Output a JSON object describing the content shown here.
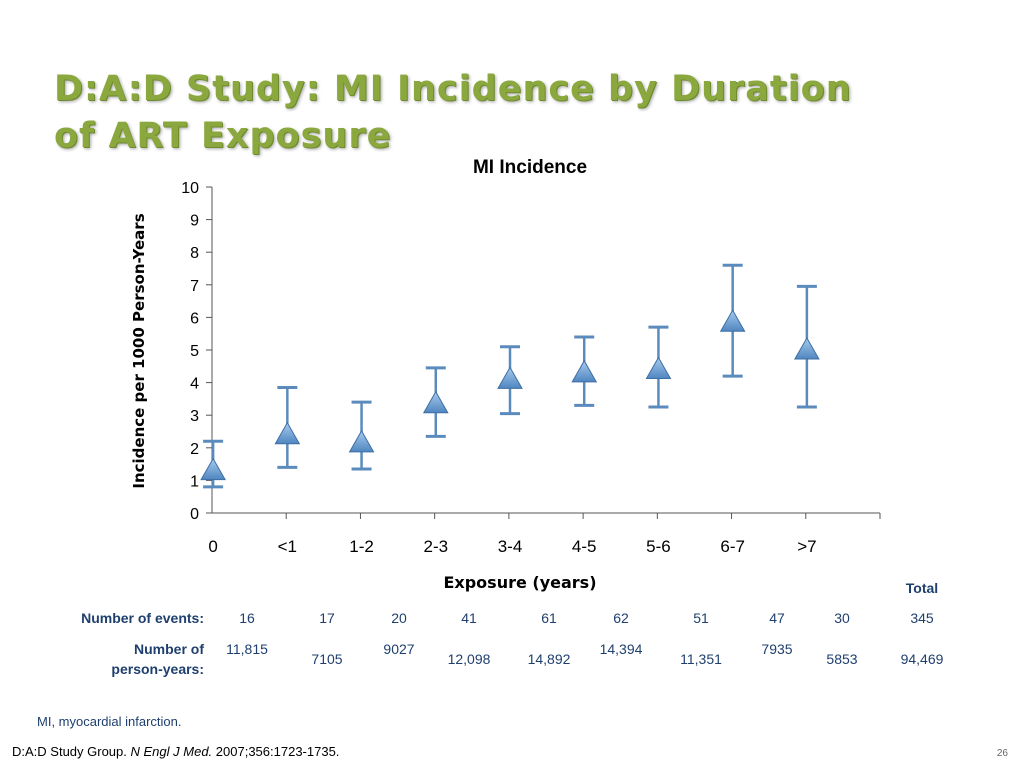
{
  "slide": {
    "title_line1": "D:A:D Study: MI Incidence by Duration",
    "title_line2": "of ART Exposure",
    "page_number": "26"
  },
  "chart_data": {
    "type": "scatter",
    "title": "MI Incidence",
    "xlabel": "Exposure (years)",
    "ylabel": "Incidence per 1000 Person-Years",
    "ylim": [
      0,
      10
    ],
    "yticks": [
      0,
      1,
      2,
      3,
      4,
      5,
      6,
      7,
      8,
      9,
      10
    ],
    "grid": false,
    "legend": "none",
    "marker": "triangle",
    "marker_color": "#4f86c0",
    "errorbar_color": "#5b8bbd",
    "categories": [
      "0",
      "<1",
      "1-2",
      "2-3",
      "3-4",
      "4-5",
      "5-6",
      "6-7",
      ">7"
    ],
    "values": [
      1.3,
      2.4,
      2.15,
      3.35,
      4.1,
      4.3,
      4.4,
      5.85,
      5.0
    ],
    "ci_lower": [
      0.8,
      1.4,
      1.35,
      2.35,
      3.05,
      3.3,
      3.25,
      4.2,
      3.25
    ],
    "ci_upper": [
      2.2,
      3.85,
      3.4,
      4.45,
      5.1,
      5.4,
      5.7,
      7.6,
      6.95
    ]
  },
  "table": {
    "total_header": "Total",
    "rows": [
      {
        "label": "Number of events:",
        "cells": [
          "16",
          "17",
          "20",
          "41",
          "61",
          "62",
          "51",
          "47",
          "30"
        ],
        "total": "345"
      },
      {
        "label_line1": "Number of",
        "label_line2": "person-years:",
        "cells": [
          "11,815",
          "7105",
          "9027",
          "12,098",
          "14,892",
          "14,394",
          "11,351",
          "7935",
          "5853"
        ],
        "total": "94,469"
      }
    ]
  },
  "footnote": "MI, myocardial infarction.",
  "citation": {
    "authors": "D:A:D Study Group.",
    "journal": "N Engl J Med.",
    "details": "2007;356:1723-1735."
  }
}
